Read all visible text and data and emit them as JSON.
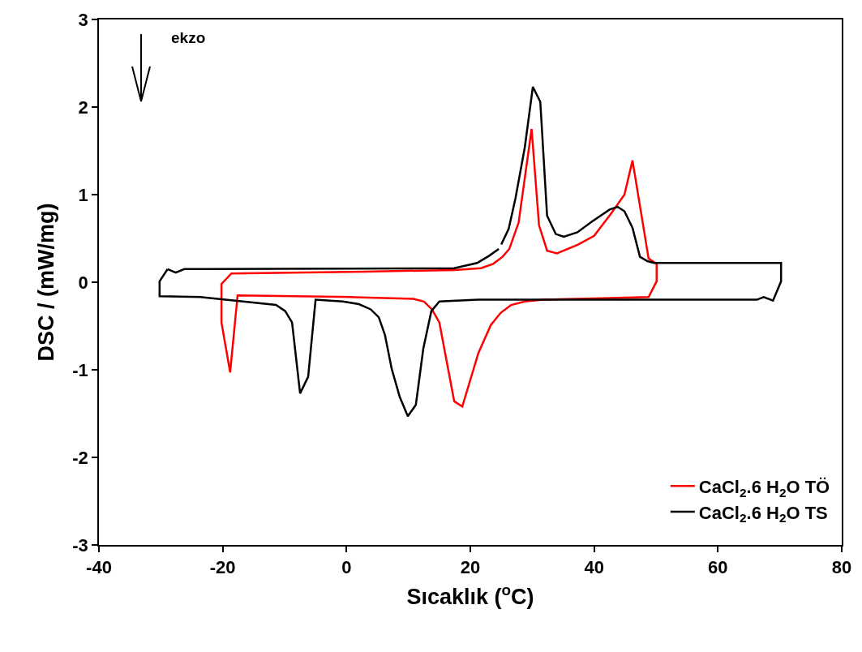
{
  "chart_data": {
    "type": "line",
    "xlabel": "Sıcaklık ($^{o}$C)",
    "ylabel": "DSC / (mW/mg)",
    "annotations": [
      "ekzo"
    ],
    "xlim": [
      -40,
      80
    ],
    "xticks": [
      -40,
      -20,
      0,
      20,
      40,
      60,
      80
    ],
    "ylim": [
      -3,
      3
    ],
    "yticks": [
      -3,
      -2,
      -1,
      0,
      1,
      2,
      3
    ],
    "grid": false,
    "legend": "bottom right",
    "marker": "none",
    "line_style": "solid",
    "series": [
      {
        "name": "CaCl$_{2}$.6 H$_{2}$O TÖ",
        "color": "#ff0000",
        "x": [
          0,
          10.8,
          12.5,
          13.8,
          15.0,
          17.4,
          18.7,
          21.3,
          23.3,
          24.9,
          26.6,
          28.8,
          31.8,
          48.8,
          50.1,
          50.1,
          48.8,
          46.2,
          44.9,
          42.6,
          40.0,
          37.4,
          34.0,
          32.4,
          31.1,
          29.9,
          27.8,
          26.3,
          25.2,
          23.7,
          21.7,
          17.4,
          3.0,
          -18.6,
          -20.2,
          -20.2,
          -18.8,
          -17.6,
          1
        ],
        "values": [
          -0.17,
          -0.19,
          -0.22,
          -0.31,
          -0.46,
          -1.36,
          -1.42,
          -0.81,
          -0.49,
          -0.35,
          -0.26,
          -0.22,
          -0.2,
          -0.17,
          0.01,
          0.21,
          0.27,
          1.39,
          1.0,
          0.77,
          0.53,
          0.43,
          0.33,
          0.36,
          0.65,
          1.75,
          0.68,
          0.38,
          0.29,
          0.21,
          0.16,
          0.14,
          0.12,
          0.1,
          -0.02,
          -0.46,
          -1.03,
          -0.15,
          -0.17
        ]
      },
      {
        "name": "CaCl$_{2}$.6 H$_{2}$O TS",
        "color": "#000000",
        "x": [
          -28.9,
          -30.2,
          -30.2,
          -23.6,
          -11.4,
          -9.9,
          -8.8,
          -7.5,
          -6.2,
          -5.0,
          -0.6,
          2.0,
          3.9,
          5.2,
          6.2,
          7.3,
          8.6,
          9.9,
          11.2,
          12.4,
          13.7,
          15.0,
          21.3,
          66.3,
          67.4,
          68.9,
          70.2,
          70.2,
          49.7,
          48.6,
          47.4,
          46.2,
          44.9,
          43.8,
          42.5,
          39.6,
          37.3,
          35.1,
          33.8,
          32.4,
          31.3,
          30.1,
          28.8,
          27.3,
          26.2,
          25.0,
          null,
          24.6,
          23.0,
          21.1,
          17.4,
          -26.2,
          -27.6,
          -28.9
        ],
        "values": [
          0.15,
          0.01,
          -0.16,
          -0.17,
          -0.26,
          -0.33,
          -0.46,
          -1.27,
          -1.08,
          -0.2,
          -0.22,
          -0.25,
          -0.31,
          -0.4,
          -0.6,
          -0.99,
          -1.31,
          -1.53,
          -1.4,
          -0.76,
          -0.33,
          -0.22,
          -0.2,
          -0.2,
          -0.17,
          -0.21,
          0.01,
          0.22,
          0.22,
          0.24,
          0.29,
          0.62,
          0.81,
          0.86,
          0.83,
          0.69,
          0.57,
          0.52,
          0.55,
          0.76,
          2.06,
          2.23,
          1.54,
          0.96,
          0.61,
          0.43,
          null,
          0.38,
          0.3,
          0.22,
          0.16,
          0.15,
          0.11,
          0.15
        ]
      }
    ]
  }
}
